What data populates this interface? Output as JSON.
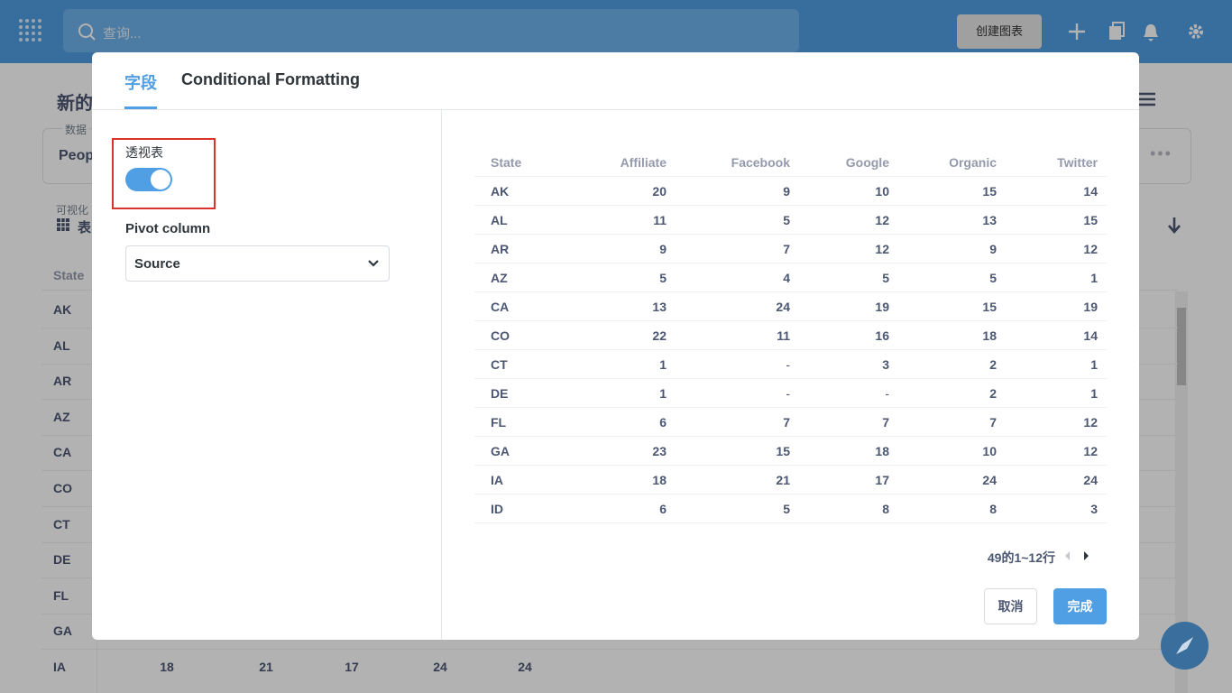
{
  "topbar": {
    "search_placeholder": "查询...",
    "create_button": "创建图表"
  },
  "background": {
    "title": "新的",
    "data_label": "数据",
    "data_value": "Peop",
    "visualization_label": "可视化",
    "visualization_value": "表",
    "table_header": "State",
    "states": [
      "AK",
      "AL",
      "AR",
      "AZ",
      "CA",
      "CO",
      "CT",
      "DE",
      "FL",
      "GA",
      "IA"
    ],
    "last_row_values": [
      18,
      21,
      17,
      24,
      24
    ]
  },
  "modal": {
    "tabs": [
      "字段",
      "Conditional Formatting"
    ],
    "active_tab": 0,
    "pivot_toggle_label": "透视表",
    "pivot_toggle_on": true,
    "pivot_column_label": "Pivot column",
    "pivot_column_value": "Source",
    "table": {
      "columns": [
        "State",
        "Affiliate",
        "Facebook",
        "Google",
        "Organic",
        "Twitter"
      ],
      "rows": [
        [
          "AK",
          20,
          9,
          10,
          15,
          14
        ],
        [
          "AL",
          11,
          5,
          12,
          13,
          15
        ],
        [
          "AR",
          9,
          7,
          12,
          9,
          12
        ],
        [
          "AZ",
          5,
          4,
          5,
          5,
          1
        ],
        [
          "CA",
          13,
          24,
          19,
          15,
          19
        ],
        [
          "CO",
          22,
          11,
          16,
          18,
          14
        ],
        [
          "CT",
          1,
          "-",
          3,
          2,
          1
        ],
        [
          "DE",
          1,
          "-",
          "-",
          2,
          1
        ],
        [
          "FL",
          6,
          7,
          7,
          7,
          12
        ],
        [
          "GA",
          23,
          15,
          18,
          10,
          12
        ],
        [
          "IA",
          18,
          21,
          17,
          24,
          24
        ],
        [
          "ID",
          6,
          5,
          8,
          8,
          3
        ]
      ]
    },
    "pagination": "49的1~12行",
    "cancel_button": "取消",
    "done_button": "完成"
  }
}
